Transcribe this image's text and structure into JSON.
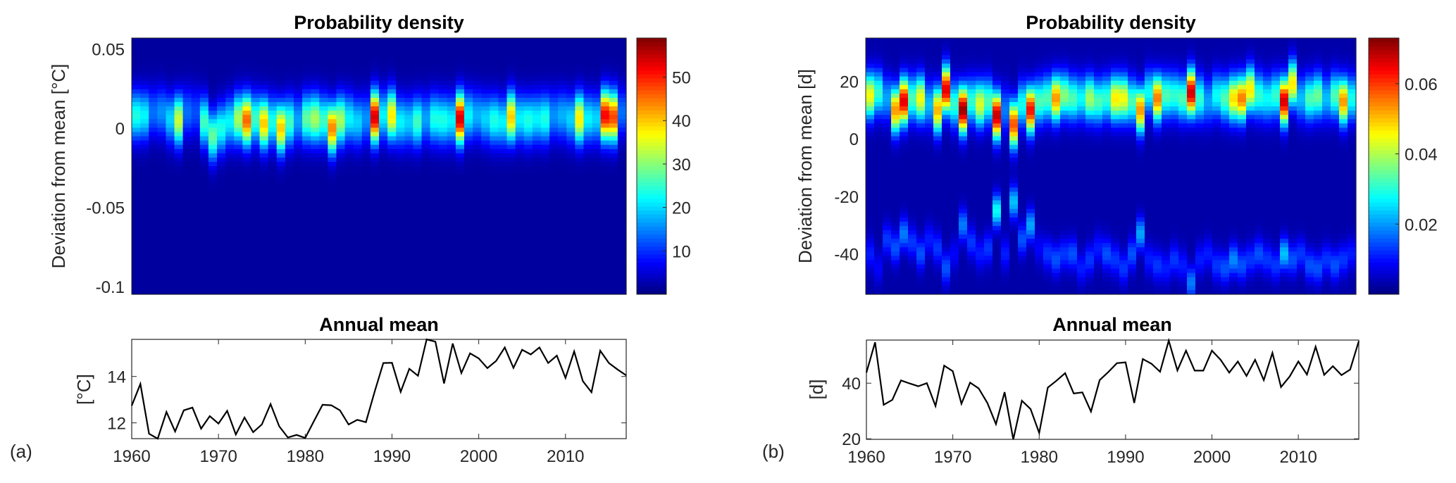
{
  "panel_labels": [
    "(a)",
    "(b)"
  ],
  "chart_data": [
    {
      "type": "heatmap",
      "panel": "(a)",
      "title": "Probability density",
      "ylabel": "Deviation from mean [°C]",
      "x": [
        1960,
        1961,
        1962,
        1963,
        1964,
        1965,
        1966,
        1967,
        1968,
        1969,
        1970,
        1971,
        1972,
        1973,
        1974,
        1975,
        1976,
        1977,
        1978,
        1979,
        1980,
        1981,
        1982,
        1983,
        1984,
        1985,
        1986,
        1987,
        1988,
        1989,
        1990,
        1991,
        1992,
        1993,
        1994,
        1995,
        1996,
        1997,
        1998,
        1999,
        2000,
        2001,
        2002,
        2003,
        2004,
        2005,
        2006,
        2007,
        2008,
        2009,
        2010,
        2011,
        2012,
        2013,
        2014,
        2015,
        2016,
        2017
      ],
      "ylim": [
        -0.105,
        0.057
      ],
      "yticks": [
        -0.1,
        -0.05,
        0,
        0.05
      ],
      "ytick_labels": [
        "-0.1",
        "-0.05",
        "0",
        "0.05"
      ],
      "colormap": "jet",
      "colorbar": {
        "clim": [
          0,
          59
        ],
        "ticks": [
          10,
          20,
          30,
          40,
          50
        ],
        "tick_labels": [
          "10",
          "20",
          "30",
          "40",
          "50"
        ]
      },
      "peak_density": [
        22,
        20,
        12,
        14,
        18,
        32,
        12,
        10,
        24,
        26,
        22,
        20,
        30,
        44,
        24,
        38,
        22,
        38,
        24,
        15,
        26,
        30,
        24,
        42,
        30,
        20,
        18,
        14,
        52,
        20,
        36,
        20,
        18,
        24,
        15,
        22,
        22,
        20,
        52,
        20,
        16,
        18,
        22,
        20,
        38,
        20,
        22,
        20,
        22,
        14,
        16,
        18,
        36,
        20,
        18,
        50,
        46,
        12
      ],
      "peak_location": [
        0.008,
        0.008,
        0.01,
        0.01,
        0.006,
        0.005,
        0.01,
        0.01,
        0.004,
        -0.005,
        0.0,
        0.004,
        0.006,
        0.005,
        0.006,
        0.003,
        0.004,
        0.0,
        0.004,
        0.005,
        0.006,
        0.006,
        0.005,
        0.0,
        0.005,
        0.006,
        0.004,
        0.006,
        0.007,
        0.008,
        0.008,
        0.004,
        0.004,
        0.004,
        0.006,
        0.006,
        0.005,
        0.005,
        0.006,
        0.008,
        0.008,
        0.006,
        0.005,
        0.004,
        0.007,
        0.006,
        0.005,
        0.006,
        0.006,
        0.008,
        0.008,
        0.006,
        0.006,
        0.006,
        0.006,
        0.008,
        0.007,
        0.01
      ]
    },
    {
      "type": "line",
      "panel": "(a)",
      "title": "Annual mean",
      "ylabel": "[°C]",
      "x": [
        1960,
        1961,
        1962,
        1963,
        1964,
        1965,
        1966,
        1967,
        1968,
        1969,
        1970,
        1971,
        1972,
        1973,
        1974,
        1975,
        1976,
        1977,
        1978,
        1979,
        1980,
        1981,
        1982,
        1983,
        1984,
        1985,
        1986,
        1987,
        1988,
        1989,
        1990,
        1991,
        1992,
        1993,
        1994,
        1995,
        1996,
        1997,
        1998,
        1999,
        2000,
        2001,
        2002,
        2003,
        2004,
        2005,
        2006,
        2007,
        2008,
        2009,
        2010,
        2011,
        2012,
        2013,
        2014,
        2015,
        2016,
        2017
      ],
      "y": [
        12.74,
        13.68,
        11.53,
        11.32,
        12.47,
        11.63,
        12.54,
        12.66,
        11.75,
        12.29,
        11.97,
        12.52,
        11.5,
        12.23,
        11.6,
        11.93,
        12.81,
        11.85,
        11.37,
        11.48,
        11.35,
        12.07,
        12.78,
        12.76,
        12.54,
        11.93,
        12.13,
        12.03,
        13.34,
        14.58,
        14.59,
        13.34,
        14.33,
        14.03,
        15.6,
        15.5,
        13.7,
        15.42,
        14.15,
        15.0,
        14.78,
        14.36,
        14.67,
        15.25,
        14.37,
        15.15,
        14.95,
        15.25,
        14.58,
        14.9,
        13.94,
        15.08,
        13.8,
        13.32,
        15.11,
        14.58,
        14.3,
        14.05
      ],
      "xlim": [
        1960,
        2017
      ],
      "ylim": [
        11.32,
        15.6
      ],
      "xticks": [
        1960,
        1970,
        1980,
        1990,
        2000,
        2010
      ],
      "xtick_labels": [
        "1960",
        "1970",
        "1980",
        "1990",
        "2000",
        "2010"
      ],
      "yticks": [
        12,
        14
      ],
      "ytick_labels": [
        "12",
        "14"
      ]
    },
    {
      "type": "heatmap",
      "panel": "(b)",
      "title": "Probability density",
      "ylabel": "Deviation from mean [d]",
      "x": [
        1960,
        1961,
        1962,
        1963,
        1964,
        1965,
        1966,
        1967,
        1968,
        1969,
        1970,
        1971,
        1972,
        1973,
        1974,
        1975,
        1976,
        1977,
        1978,
        1979,
        1980,
        1981,
        1982,
        1983,
        1984,
        1985,
        1986,
        1987,
        1988,
        1989,
        1990,
        1991,
        1992,
        1993,
        1994,
        1995,
        1996,
        1997,
        1998,
        1999,
        2000,
        2001,
        2002,
        2003,
        2004,
        2005,
        2006,
        2007,
        2008,
        2009,
        2010,
        2011,
        2012,
        2013,
        2014,
        2015,
        2016,
        2017
      ],
      "ylim": [
        -54,
        35
      ],
      "yticks": [
        -40,
        -20,
        0,
        20
      ],
      "ytick_labels": [
        "-40",
        "-20",
        "0",
        "20"
      ],
      "colormap": "jet",
      "colorbar": {
        "clim": [
          0,
          0.073
        ],
        "ticks": [
          0.02,
          0.04,
          0.06
        ],
        "tick_labels": [
          "0.02",
          "0.04",
          "0.06"
        ]
      },
      "peak_density": [
        0.042,
        0.028,
        0.018,
        0.05,
        0.063,
        0.03,
        0.042,
        0.02,
        0.048,
        0.063,
        0.028,
        0.068,
        0.028,
        0.04,
        0.03,
        0.065,
        0.015,
        0.055,
        0.026,
        0.06,
        0.03,
        0.03,
        0.05,
        0.034,
        0.03,
        0.025,
        0.036,
        0.03,
        0.028,
        0.044,
        0.042,
        0.03,
        0.05,
        0.025,
        0.052,
        0.03,
        0.028,
        0.03,
        0.064,
        0.028,
        0.018,
        0.025,
        0.03,
        0.045,
        0.052,
        0.044,
        0.028,
        0.025,
        0.028,
        0.064,
        0.044,
        0.02,
        0.03,
        0.032,
        0.02,
        0.03,
        0.05,
        0.026
      ],
      "peak_location": [
        15,
        16,
        14,
        10,
        13,
        14,
        14,
        12,
        10,
        17,
        12,
        10,
        13,
        12,
        13,
        8,
        10,
        5,
        12,
        10,
        13,
        14,
        14,
        15,
        14,
        14,
        14,
        13,
        14,
        14,
        14,
        13,
        10,
        16,
        14,
        15,
        15,
        14,
        16,
        14,
        13,
        15,
        14,
        14,
        14,
        17,
        15,
        14,
        15,
        13,
        19,
        14,
        14,
        15,
        14,
        15,
        13,
        14
      ],
      "secondary_density": [
        0.008,
        0.006,
        0.01,
        0.012,
        0.015,
        0.01,
        0.012,
        0.008,
        0.01,
        0.012,
        0.006,
        0.015,
        0.01,
        0.008,
        0.01,
        0.025,
        0.008,
        0.02,
        0.012,
        0.018,
        0.006,
        0.01,
        0.012,
        0.01,
        0.012,
        0.008,
        0.01,
        0.008,
        0.012,
        0.01,
        0.01,
        0.012,
        0.018,
        0.008,
        0.01,
        0.008,
        0.01,
        0.008,
        0.015,
        0.008,
        0.008,
        0.01,
        0.012,
        0.016,
        0.012,
        0.01,
        0.012,
        0.01,
        0.01,
        0.02,
        0.012,
        0.01,
        0.012,
        0.012,
        0.01,
        0.012,
        0.01,
        0.008
      ],
      "secondary_location": [
        -40,
        -45,
        -35,
        -38,
        -33,
        -36,
        -40,
        -35,
        -38,
        -45,
        -40,
        -30,
        -36,
        -40,
        -38,
        -25,
        -40,
        -22,
        -35,
        -30,
        -38,
        -40,
        -42,
        -40,
        -40,
        -45,
        -42,
        -38,
        -40,
        -42,
        -45,
        -40,
        -33,
        -42,
        -44,
        -45,
        -42,
        -44,
        -50,
        -42,
        -40,
        -44,
        -45,
        -42,
        -44,
        -42,
        -40,
        -42,
        -44,
        -40,
        -42,
        -40,
        -44,
        -45,
        -42,
        -44,
        -42,
        -40
      ]
    },
    {
      "type": "line",
      "panel": "(b)",
      "title": "Annual mean",
      "ylabel": "[d]",
      "x": [
        1960,
        1961,
        1962,
        1963,
        1964,
        1965,
        1966,
        1967,
        1968,
        1969,
        1970,
        1971,
        1972,
        1973,
        1974,
        1975,
        1976,
        1977,
        1978,
        1979,
        1980,
        1981,
        1982,
        1983,
        1984,
        1985,
        1986,
        1987,
        1988,
        1989,
        1990,
        1991,
        1992,
        1993,
        1994,
        1995,
        1996,
        1997,
        1998,
        1999,
        2000,
        2001,
        2002,
        2003,
        2004,
        2005,
        2006,
        2007,
        2008,
        2009,
        2010,
        2011,
        2012,
        2013,
        2014,
        2015,
        2016,
        2017
      ],
      "y": [
        43.8,
        54.7,
        32.2,
        34.0,
        41.0,
        39.9,
        38.9,
        40.0,
        31.8,
        46.3,
        44.3,
        32.6,
        40.2,
        38.1,
        32.9,
        25.3,
        36.8,
        19.8,
        33.7,
        30.7,
        22.1,
        38.4,
        40.9,
        43.6,
        36.3,
        36.7,
        29.8,
        41.1,
        44.0,
        47.2,
        47.5,
        32.9,
        48.7,
        47.0,
        44.1,
        55.3,
        44.6,
        51.7,
        44.5,
        44.5,
        51.7,
        48.4,
        43.8,
        47.8,
        42.6,
        48.4,
        41.1,
        50.9,
        38.6,
        42.4,
        47.8,
        43.1,
        53.1,
        43.0,
        46.1,
        42.9,
        44.9,
        55.1
      ],
      "xlim": [
        1960,
        2017
      ],
      "ylim": [
        19.8,
        55.5
      ],
      "xticks": [
        1960,
        1970,
        1980,
        1990,
        2000,
        2010
      ],
      "xtick_labels": [
        "1960",
        "1970",
        "1980",
        "1990",
        "2000",
        "2010"
      ],
      "yticks": [
        20,
        40
      ],
      "ytick_labels": [
        "20",
        "40"
      ]
    }
  ]
}
